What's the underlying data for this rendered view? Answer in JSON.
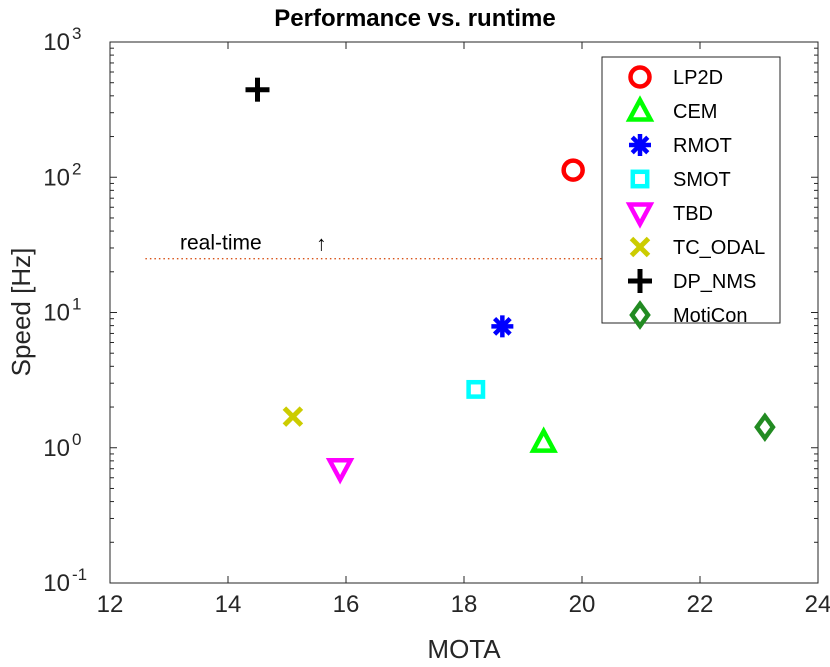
{
  "chart_data": {
    "type": "scatter",
    "title": "Performance vs. runtime",
    "xlabel": "MOTA",
    "ylabel": "Speed [Hz]",
    "xlim": [
      12,
      24
    ],
    "ylim": [
      0.1,
      1000
    ],
    "yscale": "log",
    "x_ticks": [
      "12",
      "14",
      "16",
      "18",
      "20",
      "22",
      "24"
    ],
    "y_ticks": [
      {
        "base": "10",
        "exp": "-1"
      },
      {
        "base": "10",
        "exp": "0"
      },
      {
        "base": "10",
        "exp": "1"
      },
      {
        "base": "10",
        "exp": "2"
      },
      {
        "base": "10",
        "exp": "3"
      }
    ],
    "grid": false,
    "legend_position": "top-right",
    "series": [
      {
        "name": "LP2D",
        "marker": "circle",
        "color": "#ff0000",
        "x": 19.85,
        "y": 113
      },
      {
        "name": "CEM",
        "marker": "triangle-up",
        "color": "#00ff00",
        "x": 19.35,
        "y": 1.1
      },
      {
        "name": "RMOT",
        "marker": "asterisk",
        "color": "#0000ff",
        "x": 18.65,
        "y": 7.9
      },
      {
        "name": "SMOT",
        "marker": "square",
        "color": "#00ffff",
        "x": 18.2,
        "y": 2.7
      },
      {
        "name": "TBD",
        "marker": "triangle-down",
        "color": "#ff00ff",
        "x": 15.9,
        "y": 0.7
      },
      {
        "name": "TC_ODAL",
        "marker": "x",
        "color": "#cccc00",
        "x": 15.1,
        "y": 1.7
      },
      {
        "name": "DP_NMS",
        "marker": "plus",
        "color": "#000000",
        "x": 14.5,
        "y": 444
      },
      {
        "name": "MotiCon",
        "marker": "diamond",
        "color": "#228b22",
        "x": 23.1,
        "y": 1.42
      }
    ],
    "annotation": {
      "text": "real-time",
      "arrow": "↑",
      "line_y": 25,
      "line_x_range": [
        12.6,
        20.6
      ],
      "line_color": "#d95319"
    }
  }
}
